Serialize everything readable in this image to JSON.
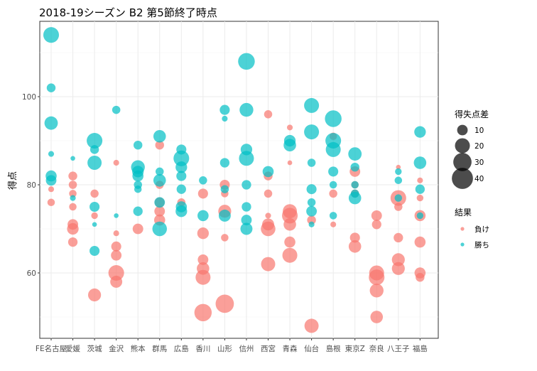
{
  "chart_data": {
    "type": "scatter",
    "title": "2018-19シーズン B2 第5節終了時点",
    "xlabel": "",
    "ylabel": "得点",
    "ylim": [
      46.5,
      117
    ],
    "yticks": [
      60,
      80,
      100
    ],
    "grid": true,
    "legend_position": "right",
    "categories": [
      "FE名古屋",
      "愛媛",
      "茨城",
      "金沢",
      "熊本",
      "群馬",
      "広島",
      "香川",
      "山形",
      "信州",
      "西宮",
      "青森",
      "仙台",
      "島根",
      "東京Z",
      "奈良",
      "八王子",
      "福島"
    ],
    "size_legend": {
      "title": "得失点差",
      "values": [
        10,
        20,
        30,
        40
      ]
    },
    "color_legend": {
      "title": "結果",
      "items": [
        {
          "label": "負け",
          "color": "#F8766D"
        },
        {
          "label": "勝ち",
          "color": "#00BFC4"
        }
      ]
    },
    "series": [
      {
        "name": "負け",
        "color": "#F8766D",
        "points": [
          {
            "x": "FE名古屋",
            "y": 79,
            "diff": 3
          },
          {
            "x": "FE名古屋",
            "y": 76,
            "diff": 5
          },
          {
            "x": "愛媛",
            "y": 82,
            "diff": 7
          },
          {
            "x": "愛媛",
            "y": 80,
            "diff": 6
          },
          {
            "x": "愛媛",
            "y": 78,
            "diff": 5
          },
          {
            "x": "愛媛",
            "y": 75,
            "diff": 5
          },
          {
            "x": "愛媛",
            "y": 71,
            "diff": 10
          },
          {
            "x": "愛媛",
            "y": 70,
            "diff": 12
          },
          {
            "x": "愛媛",
            "y": 67,
            "diff": 8
          },
          {
            "x": "茨城",
            "y": 78,
            "diff": 6
          },
          {
            "x": "茨城",
            "y": 73,
            "diff": 4
          },
          {
            "x": "茨城",
            "y": 55,
            "diff": 15
          },
          {
            "x": "金沢",
            "y": 85,
            "diff": 3
          },
          {
            "x": "金沢",
            "y": 69,
            "diff": 3
          },
          {
            "x": "金沢",
            "y": 66,
            "diff": 9
          },
          {
            "x": "金沢",
            "y": 64,
            "diff": 10
          },
          {
            "x": "金沢",
            "y": 60,
            "diff": 22
          },
          {
            "x": "金沢",
            "y": 58,
            "diff": 13
          },
          {
            "x": "熊本",
            "y": 70,
            "diff": 10
          },
          {
            "x": "群馬",
            "y": 89,
            "diff": 7
          },
          {
            "x": "群馬",
            "y": 80,
            "diff": 6
          },
          {
            "x": "群馬",
            "y": 76,
            "diff": 9
          },
          {
            "x": "群馬",
            "y": 74,
            "diff": 10
          },
          {
            "x": "群馬",
            "y": 72,
            "diff": 11
          },
          {
            "x": "広島",
            "y": 76,
            "diff": 6
          },
          {
            "x": "香川",
            "y": 78,
            "diff": 9
          },
          {
            "x": "香川",
            "y": 69,
            "diff": 12
          },
          {
            "x": "香川",
            "y": 63,
            "diff": 10
          },
          {
            "x": "香川",
            "y": 61,
            "diff": 14
          },
          {
            "x": "香川",
            "y": 59,
            "diff": 20
          },
          {
            "x": "香川",
            "y": 51,
            "diff": 27
          },
          {
            "x": "山形",
            "y": 80,
            "diff": 9
          },
          {
            "x": "山形",
            "y": 78,
            "diff": 5
          },
          {
            "x": "山形",
            "y": 74,
            "diff": 15
          },
          {
            "x": "山形",
            "y": 68,
            "diff": 5
          },
          {
            "x": "山形",
            "y": 53,
            "diff": 30
          },
          {
            "x": "西宮",
            "y": 96,
            "diff": 6
          },
          {
            "x": "西宮",
            "y": 82,
            "diff": 7
          },
          {
            "x": "西宮",
            "y": 78,
            "diff": 6
          },
          {
            "x": "西宮",
            "y": 73,
            "diff": 3
          },
          {
            "x": "西宮",
            "y": 71,
            "diff": 13
          },
          {
            "x": "西宮",
            "y": 70,
            "diff": 19
          },
          {
            "x": "西宮",
            "y": 62,
            "diff": 18
          },
          {
            "x": "青森",
            "y": 93,
            "diff": 3
          },
          {
            "x": "青森",
            "y": 85,
            "diff": 2
          },
          {
            "x": "青森",
            "y": 74,
            "diff": 18
          },
          {
            "x": "青森",
            "y": 73,
            "diff": 22
          },
          {
            "x": "青森",
            "y": 71,
            "diff": 14
          },
          {
            "x": "青森",
            "y": 67,
            "diff": 11
          },
          {
            "x": "青森",
            "y": 64,
            "diff": 20
          },
          {
            "x": "仙台",
            "y": 72,
            "diff": 7
          },
          {
            "x": "仙台",
            "y": 48,
            "diff": 18
          },
          {
            "x": "島根",
            "y": 91,
            "diff": 5
          },
          {
            "x": "島根",
            "y": 78,
            "diff": 6
          },
          {
            "x": "島根",
            "y": 71,
            "diff": 3
          },
          {
            "x": "東京Z",
            "y": 83,
            "diff": 10
          },
          {
            "x": "東京Z",
            "y": 80,
            "diff": 5
          },
          {
            "x": "東京Z",
            "y": 78,
            "diff": 6
          },
          {
            "x": "東京Z",
            "y": 68,
            "diff": 9
          },
          {
            "x": "東京Z",
            "y": 66,
            "diff": 14
          },
          {
            "x": "奈良",
            "y": 73,
            "diff": 10
          },
          {
            "x": "奈良",
            "y": 71,
            "diff": 8
          },
          {
            "x": "奈良",
            "y": 60,
            "diff": 20
          },
          {
            "x": "奈良",
            "y": 59,
            "diff": 22
          },
          {
            "x": "奈良",
            "y": 56,
            "diff": 17
          },
          {
            "x": "奈良",
            "y": 50,
            "diff": 14
          },
          {
            "x": "八王子",
            "y": 84,
            "diff": 2
          },
          {
            "x": "八王子",
            "y": 77,
            "diff": 22
          },
          {
            "x": "八王子",
            "y": 75,
            "diff": 6
          },
          {
            "x": "八王子",
            "y": 68,
            "diff": 8
          },
          {
            "x": "八王子",
            "y": 63,
            "diff": 15
          },
          {
            "x": "八王子",
            "y": 61,
            "diff": 15
          },
          {
            "x": "福島",
            "y": 81,
            "diff": 3
          },
          {
            "x": "福島",
            "y": 77,
            "diff": 4
          },
          {
            "x": "福島",
            "y": 73,
            "diff": 11
          },
          {
            "x": "福島",
            "y": 67,
            "diff": 11
          },
          {
            "x": "福島",
            "y": 60,
            "diff": 11
          },
          {
            "x": "福島",
            "y": 59,
            "diff": 7
          }
        ]
      },
      {
        "name": "勝ち",
        "color": "#00BFC4",
        "points": [
          {
            "x": "FE名古屋",
            "y": 114,
            "diff": 22
          },
          {
            "x": "FE名古屋",
            "y": 102,
            "diff": 7
          },
          {
            "x": "FE名古屋",
            "y": 94,
            "diff": 16
          },
          {
            "x": "FE名古屋",
            "y": 87,
            "diff": 3
          },
          {
            "x": "FE名古屋",
            "y": 82,
            "diff": 11
          },
          {
            "x": "FE名古屋",
            "y": 81,
            "diff": 10
          },
          {
            "x": "愛媛",
            "y": 86,
            "diff": 2
          },
          {
            "x": "愛媛",
            "y": 77,
            "diff": 3
          },
          {
            "x": "茨城",
            "y": 90,
            "diff": 22
          },
          {
            "x": "茨城",
            "y": 88,
            "diff": 7
          },
          {
            "x": "茨城",
            "y": 85,
            "diff": 18
          },
          {
            "x": "茨城",
            "y": 75,
            "diff": 9
          },
          {
            "x": "茨城",
            "y": 71,
            "diff": 2
          },
          {
            "x": "茨城",
            "y": 65,
            "diff": 9
          },
          {
            "x": "金沢",
            "y": 97,
            "diff": 6
          },
          {
            "x": "金沢",
            "y": 73,
            "diff": 2
          },
          {
            "x": "熊本",
            "y": 89,
            "diff": 7
          },
          {
            "x": "熊本",
            "y": 84,
            "diff": 17
          },
          {
            "x": "熊本",
            "y": 83,
            "diff": 12
          },
          {
            "x": "熊本",
            "y": 82,
            "diff": 11
          },
          {
            "x": "熊本",
            "y": 80,
            "diff": 6
          },
          {
            "x": "熊本",
            "y": 79,
            "diff": 5
          },
          {
            "x": "熊本",
            "y": 74,
            "diff": 8
          },
          {
            "x": "群馬",
            "y": 91,
            "diff": 14
          },
          {
            "x": "群馬",
            "y": 83,
            "diff": 6
          },
          {
            "x": "群馬",
            "y": 81,
            "diff": 14
          },
          {
            "x": "群馬",
            "y": 76,
            "diff": 10
          },
          {
            "x": "群馬",
            "y": 70,
            "diff": 19
          },
          {
            "x": "広島",
            "y": 88,
            "diff": 9
          },
          {
            "x": "広島",
            "y": 86,
            "diff": 22
          },
          {
            "x": "広島",
            "y": 84,
            "diff": 12
          },
          {
            "x": "広島",
            "y": 82,
            "diff": 9
          },
          {
            "x": "広島",
            "y": 79,
            "diff": 8
          },
          {
            "x": "広島",
            "y": 75,
            "diff": 11
          },
          {
            "x": "広島",
            "y": 74,
            "diff": 12
          },
          {
            "x": "香川",
            "y": 81,
            "diff": 6
          },
          {
            "x": "香川",
            "y": 73,
            "diff": 11
          },
          {
            "x": "山形",
            "y": 97,
            "diff": 9
          },
          {
            "x": "山形",
            "y": 95,
            "diff": 3
          },
          {
            "x": "山形",
            "y": 85,
            "diff": 8
          },
          {
            "x": "山形",
            "y": 79,
            "diff": 6
          },
          {
            "x": "山形",
            "y": 73,
            "diff": 13
          },
          {
            "x": "信州",
            "y": 108,
            "diff": 25
          },
          {
            "x": "信州",
            "y": 97,
            "diff": 17
          },
          {
            "x": "信州",
            "y": 88,
            "diff": 12
          },
          {
            "x": "信州",
            "y": 86,
            "diff": 20
          },
          {
            "x": "信州",
            "y": 80,
            "diff": 8
          },
          {
            "x": "信州",
            "y": 75,
            "diff": 8
          },
          {
            "x": "信州",
            "y": 72,
            "diff": 10
          },
          {
            "x": "信州",
            "y": 70,
            "diff": 13
          },
          {
            "x": "西宮",
            "y": 83,
            "diff": 11
          },
          {
            "x": "青森",
            "y": 90,
            "diff": 12
          },
          {
            "x": "青森",
            "y": 89,
            "diff": 14
          },
          {
            "x": "仙台",
            "y": 98,
            "diff": 20
          },
          {
            "x": "仙台",
            "y": 92,
            "diff": 20
          },
          {
            "x": "仙台",
            "y": 85,
            "diff": 6
          },
          {
            "x": "仙台",
            "y": 79,
            "diff": 9
          },
          {
            "x": "仙台",
            "y": 76,
            "diff": 6
          },
          {
            "x": "仙台",
            "y": 74,
            "diff": 10
          },
          {
            "x": "仙台",
            "y": 71,
            "diff": 3
          },
          {
            "x": "島根",
            "y": 95,
            "diff": 25
          },
          {
            "x": "島根",
            "y": 90,
            "diff": 22
          },
          {
            "x": "島根",
            "y": 88,
            "diff": 20
          },
          {
            "x": "島根",
            "y": 83,
            "diff": 9
          },
          {
            "x": "島根",
            "y": 80,
            "diff": 5
          },
          {
            "x": "島根",
            "y": 73,
            "diff": 5
          },
          {
            "x": "東京Z",
            "y": 87,
            "diff": 16
          },
          {
            "x": "東京Z",
            "y": 84,
            "diff": 7
          },
          {
            "x": "東京Z",
            "y": 80,
            "diff": 5
          },
          {
            "x": "東京Z",
            "y": 78,
            "diff": 6
          },
          {
            "x": "東京Z",
            "y": 77,
            "diff": 14
          },
          {
            "x": "八王子",
            "y": 83,
            "diff": 4
          },
          {
            "x": "八王子",
            "y": 81,
            "diff": 5
          },
          {
            "x": "八王子",
            "y": 77,
            "diff": 5
          },
          {
            "x": "福島",
            "y": 92,
            "diff": 12
          },
          {
            "x": "福島",
            "y": 85,
            "diff": 14
          },
          {
            "x": "福島",
            "y": 79,
            "diff": 8
          },
          {
            "x": "福島",
            "y": 73,
            "diff": 4
          }
        ]
      }
    ]
  }
}
